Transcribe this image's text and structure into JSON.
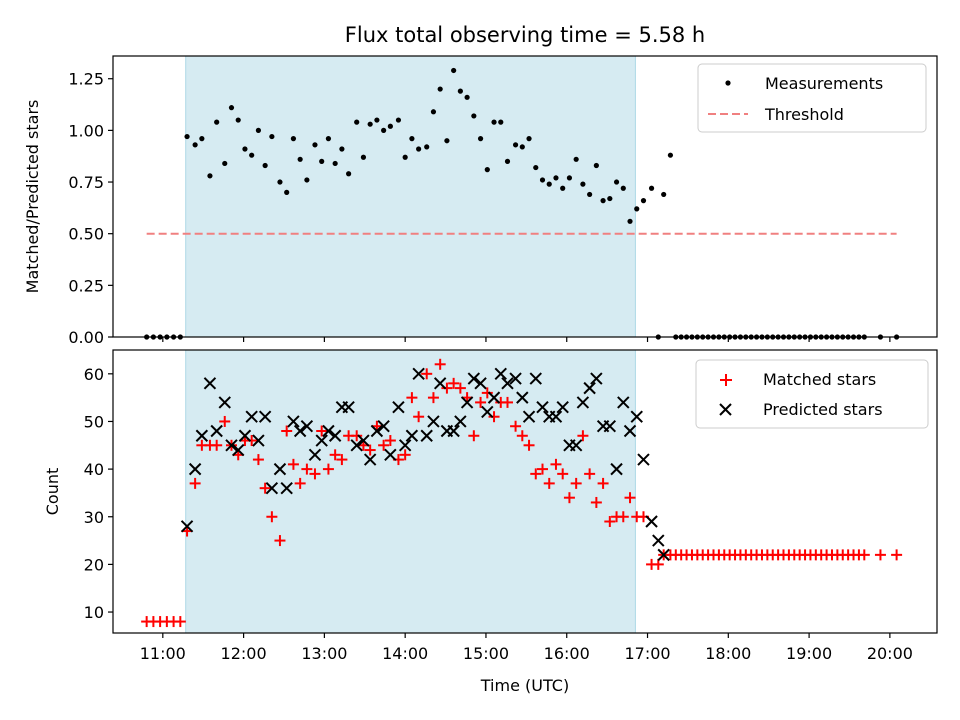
{
  "chart_data": [
    {
      "type": "scatter",
      "title": "Flux total observing time = 5.58 h",
      "xlabel": "",
      "ylabel": "Matched/Predicted stars",
      "ylim": [
        0,
        1.36
      ],
      "yticks": [
        "0.00",
        "0.25",
        "0.50",
        "0.75",
        "1.00",
        "1.25"
      ],
      "shaded_span": [
        "11:17",
        "16:51"
      ],
      "legend": {
        "placement": "top-right",
        "entries": [
          "Measurements",
          "Threshold"
        ]
      },
      "threshold": {
        "name": "Threshold",
        "value": 0.5,
        "x_range": [
          "10:48",
          "20:05"
        ],
        "color": "#f08080"
      },
      "series": [
        {
          "name": "Measurements",
          "color": "#000000",
          "x": [
            "10:48",
            "10:53",
            "10:58",
            "11:03",
            "11:08",
            "11:13",
            "11:18",
            "11:24",
            "11:29",
            "11:35",
            "11:40",
            "11:46",
            "11:51",
            "11:56",
            "12:01",
            "12:06",
            "12:11",
            "12:16",
            "12:21",
            "12:27",
            "12:32",
            "12:37",
            "12:42",
            "12:47",
            "12:53",
            "12:58",
            "13:03",
            "13:08",
            "13:13",
            "13:18",
            "13:24",
            "13:29",
            "13:34",
            "13:39",
            "13:44",
            "13:49",
            "13:55",
            "14:00",
            "14:05",
            "14:10",
            "14:16",
            "14:21",
            "14:26",
            "14:31",
            "14:36",
            "14:41",
            "14:46",
            "14:51",
            "14:56",
            "15:01",
            "15:06",
            "15:11",
            "15:16",
            "15:22",
            "15:27",
            "15:32",
            "15:37",
            "15:42",
            "15:47",
            "15:52",
            "15:57",
            "16:02",
            "16:07",
            "16:12",
            "16:17",
            "16:22",
            "16:27",
            "16:32",
            "16:37",
            "16:42",
            "16:47",
            "16:52",
            "16:57",
            "17:03",
            "17:08",
            "17:12",
            "17:17",
            "17:21",
            "17:25",
            "17:29",
            "17:33",
            "17:37",
            "17:41",
            "17:45",
            "17:49",
            "17:53",
            "17:57",
            "18:01",
            "18:05",
            "18:09",
            "18:13",
            "18:17",
            "18:21",
            "18:25",
            "18:29",
            "18:33",
            "18:37",
            "18:41",
            "18:45",
            "18:49",
            "18:53",
            "18:57",
            "19:01",
            "19:05",
            "19:09",
            "19:13",
            "19:17",
            "19:21",
            "19:25",
            "19:29",
            "19:33",
            "19:37",
            "19:41",
            "19:53",
            "20:05"
          ],
          "y": [
            0,
            0,
            0,
            0,
            0,
            0,
            0.97,
            0.93,
            0.96,
            0.78,
            1.04,
            0.84,
            1.11,
            1.05,
            0.91,
            0.88,
            1.0,
            0.83,
            0.97,
            0.75,
            0.7,
            0.96,
            0.86,
            0.76,
            0.93,
            0.85,
            0.96,
            0.84,
            0.91,
            0.79,
            1.04,
            0.87,
            1.03,
            1.05,
            1.0,
            1.02,
            1.05,
            0.87,
            0.96,
            0.91,
            0.92,
            1.09,
            1.2,
            0.95,
            1.29,
            1.19,
            1.16,
            1.07,
            0.96,
            0.81,
            1.04,
            1.04,
            0.85,
            0.93,
            0.92,
            0.96,
            0.82,
            0.76,
            0.74,
            0.77,
            0.72,
            0.77,
            0.86,
            0.74,
            0.69,
            0.83,
            0.66,
            0.67,
            0.75,
            0.72,
            0.56,
            0.62,
            0.66,
            0.72,
            0,
            0.69,
            0.88,
            0,
            0,
            0,
            0,
            0,
            0,
            0,
            0,
            0,
            0,
            0,
            0,
            0,
            0,
            0,
            0,
            0,
            0,
            0,
            0,
            0,
            0,
            0,
            0,
            0,
            0,
            0,
            0,
            0,
            0,
            0,
            0,
            0,
            0,
            0,
            0,
            0,
            0
          ]
        }
      ]
    },
    {
      "type": "scatter",
      "title": "",
      "xlabel": "Time (UTC)",
      "ylabel": "Count",
      "ylim": [
        5.6,
        65
      ],
      "yticks": [
        "10",
        "20",
        "30",
        "40",
        "50",
        "60"
      ],
      "xlim": [
        "10:23",
        "20:35"
      ],
      "xticks": [
        "11:00",
        "12:00",
        "13:00",
        "14:00",
        "15:00",
        "16:00",
        "17:00",
        "18:00",
        "19:00",
        "20:00"
      ],
      "shaded_span": [
        "11:17",
        "16:51"
      ],
      "legend": {
        "placement": "top-right",
        "entries": [
          "Matched stars",
          "Predicted stars"
        ]
      },
      "series": [
        {
          "name": "Matched stars",
          "marker": "+",
          "color": "#ff0000",
          "x": [
            "10:48",
            "10:53",
            "10:58",
            "11:03",
            "11:08",
            "11:13",
            "11:18",
            "11:24",
            "11:29",
            "11:35",
            "11:40",
            "11:46",
            "11:51",
            "11:56",
            "12:01",
            "12:06",
            "12:11",
            "12:16",
            "12:21",
            "12:27",
            "12:32",
            "12:37",
            "12:42",
            "12:47",
            "12:53",
            "12:58",
            "13:03",
            "13:08",
            "13:13",
            "13:18",
            "13:24",
            "13:29",
            "13:34",
            "13:39",
            "13:44",
            "13:49",
            "13:55",
            "14:00",
            "14:05",
            "14:10",
            "14:16",
            "14:21",
            "14:26",
            "14:31",
            "14:36",
            "14:41",
            "14:46",
            "14:51",
            "14:56",
            "15:01",
            "15:06",
            "15:11",
            "15:16",
            "15:22",
            "15:27",
            "15:32",
            "15:37",
            "15:42",
            "15:47",
            "15:52",
            "15:57",
            "16:02",
            "16:07",
            "16:12",
            "16:17",
            "16:22",
            "16:27",
            "16:32",
            "16:37",
            "16:42",
            "16:47",
            "16:52",
            "16:57",
            "17:03",
            "17:08",
            "17:12",
            "17:17",
            "17:21",
            "17:25",
            "17:29",
            "17:33",
            "17:37",
            "17:41",
            "17:45",
            "17:49",
            "17:53",
            "17:57",
            "18:01",
            "18:05",
            "18:09",
            "18:13",
            "18:17",
            "18:21",
            "18:25",
            "18:29",
            "18:33",
            "18:37",
            "18:41",
            "18:45",
            "18:49",
            "18:53",
            "18:57",
            "19:01",
            "19:05",
            "19:09",
            "19:13",
            "19:17",
            "19:21",
            "19:25",
            "19:29",
            "19:33",
            "19:37",
            "19:41",
            "19:53",
            "20:05"
          ],
          "y": [
            8,
            8,
            8,
            8,
            8,
            8,
            27,
            37,
            45,
            45,
            45,
            50,
            45,
            43,
            46,
            46,
            42,
            36,
            30,
            25,
            48,
            41,
            37,
            40,
            39,
            48,
            40,
            43,
            42,
            47,
            47,
            45,
            44,
            49,
            45,
            46,
            42,
            43,
            55,
            51,
            60,
            55,
            62,
            57,
            58,
            57,
            55,
            47,
            54,
            56,
            51,
            54,
            54,
            49,
            47,
            45,
            39,
            40,
            37,
            41,
            39,
            34,
            37,
            47,
            39,
            33,
            37,
            29,
            30,
            30,
            34,
            30,
            30,
            20,
            20,
            22,
            22,
            22,
            22,
            22,
            22,
            22,
            22,
            22,
            22,
            22,
            22,
            22,
            22,
            22,
            22,
            22,
            22,
            22,
            22,
            22,
            22,
            22,
            22,
            22,
            22,
            22,
            22,
            22,
            22,
            22,
            22,
            22,
            22,
            22,
            22,
            22,
            22,
            22,
            22
          ]
        },
        {
          "name": "Predicted stars",
          "marker": "x",
          "color": "#000000",
          "x": [
            "11:18",
            "11:24",
            "11:29",
            "11:35",
            "11:40",
            "11:46",
            "11:51",
            "11:56",
            "12:01",
            "12:06",
            "12:11",
            "12:16",
            "12:21",
            "12:27",
            "12:32",
            "12:37",
            "12:42",
            "12:47",
            "12:53",
            "12:58",
            "13:03",
            "13:08",
            "13:13",
            "13:18",
            "13:24",
            "13:29",
            "13:34",
            "13:39",
            "13:44",
            "13:49",
            "13:55",
            "14:00",
            "14:05",
            "14:10",
            "14:16",
            "14:21",
            "14:26",
            "14:31",
            "14:36",
            "14:41",
            "14:46",
            "14:51",
            "14:56",
            "15:01",
            "15:06",
            "15:11",
            "15:16",
            "15:22",
            "15:27",
            "15:32",
            "15:37",
            "15:42",
            "15:47",
            "15:52",
            "15:57",
            "16:02",
            "16:07",
            "16:12",
            "16:17",
            "16:22",
            "16:27",
            "16:32",
            "16:37",
            "16:42",
            "16:47",
            "16:52",
            "16:57",
            "17:03",
            "17:08",
            "17:12"
          ],
          "y": [
            28,
            40,
            47,
            58,
            48,
            54,
            45,
            44,
            47,
            51,
            46,
            51,
            36,
            40,
            36,
            50,
            48,
            49,
            43,
            46,
            48,
            47,
            53,
            53,
            45,
            46,
            42,
            48,
            49,
            43,
            53,
            45,
            47,
            60,
            47,
            50,
            58,
            48,
            48,
            50,
            54,
            59,
            58,
            52,
            55,
            60,
            58,
            59,
            55,
            51,
            59,
            53,
            51,
            51,
            53,
            45,
            45,
            54,
            57,
            59,
            49,
            49,
            40,
            54,
            48,
            51,
            42,
            29,
            25,
            22
          ]
        }
      ]
    }
  ]
}
